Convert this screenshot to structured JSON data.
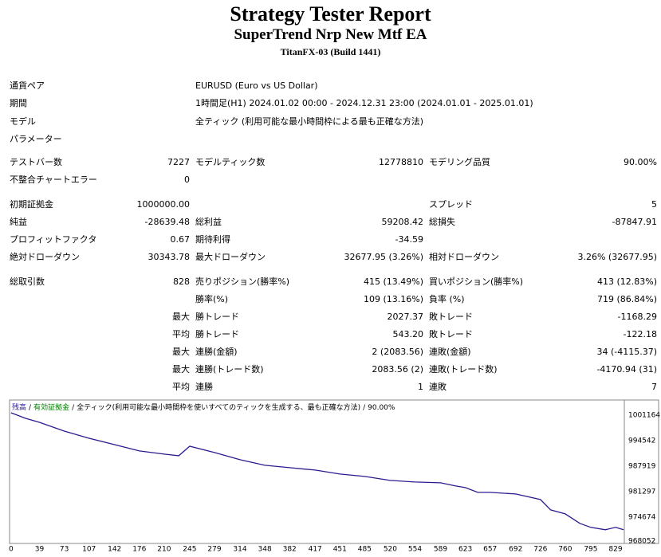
{
  "header": {
    "title": "Strategy Tester Report",
    "subtitle": "SuperTrend Nrp New Mtf EA",
    "build": "TitanFX-03 (Build 1441)"
  },
  "info": [
    {
      "label": "通貨ペア",
      "value": "EURUSD (Euro vs US Dollar)"
    },
    {
      "label": "期間",
      "value": "1時間足(H1) 2024.01.02 00:00 - 2024.12.31 23:00 (2024.01.01 - 2025.01.01)"
    },
    {
      "label": "モデル",
      "value": "全ティック (利用可能な最小時間枠による最も正確な方法)"
    },
    {
      "label": "パラメーター"
    }
  ],
  "groups": [
    [
      [
        "テストバー数",
        "7227",
        "モデルティック数",
        "12778810",
        "モデリング品質",
        "90.00%"
      ],
      [
        "不整合チャートエラー",
        "0",
        null,
        null,
        null,
        null
      ]
    ],
    [
      [
        "初期証拠金",
        "1000000.00",
        null,
        null,
        "スプレッド",
        "5"
      ],
      [
        "純益",
        "-28639.48",
        "総利益",
        "59208.42",
        "総損失",
        "-87847.91"
      ],
      [
        "プロフィットファクタ",
        "0.67",
        "期待利得",
        "-34.59",
        null,
        null
      ],
      [
        "絶対ドローダウン",
        "30343.78",
        "最大ドローダウン",
        "32677.95 (3.26%)",
        "相対ドローダウン",
        "3.26% (32677.95)"
      ]
    ],
    [
      [
        "総取引数",
        "828",
        "売りポジション(勝率%)",
        "415 (13.49%)",
        "買いポジション(勝率%)",
        "413 (12.83%)"
      ],
      [
        null,
        null,
        "勝率(%)",
        "109 (13.16%)",
        "負率 (%)",
        "719 (86.84%)"
      ],
      [
        null,
        "最大",
        "勝トレード",
        "2027.37",
        "敗トレード",
        "-1168.29"
      ],
      [
        null,
        "平均",
        "勝トレード",
        "543.20",
        "敗トレード",
        "-122.18"
      ],
      [
        null,
        "最大",
        "連勝(金額)",
        "2 (2083.56)",
        "連敗(金額)",
        "34 (-4115.37)"
      ],
      [
        null,
        "最大",
        "連勝(トレード数)",
        "2083.56 (2)",
        "連敗(トレード数)",
        "-4170.94 (31)"
      ],
      [
        null,
        "平均",
        "連勝",
        "1",
        "連敗",
        "7"
      ]
    ]
  ],
  "chart_data": {
    "type": "line",
    "separator": "/",
    "equity_label": "有効証拠金",
    "equity_color": "#008000",
    "model_note": "全ティック(利用可能な最小時間枠を使いすべてのティックを生成する、最も正確な方法)",
    "quality": "90.00%",
    "x": [
      0,
      20,
      39,
      73,
      107,
      142,
      176,
      210,
      230,
      245,
      279,
      314,
      348,
      382,
      417,
      451,
      485,
      520,
      554,
      589,
      610,
      623,
      640,
      657,
      692,
      726,
      740,
      760,
      780,
      795,
      815,
      829,
      840
    ],
    "series": [
      {
        "name": "残高",
        "color": "#2b1b8f",
        "values": [
          1001785,
          1000336,
          999300,
          997024,
          995161,
          993505,
          991849,
          991021,
          990607,
          993091,
          991435,
          989572,
          988123,
          987502,
          986881,
          985846,
          985225,
          984190,
          983776,
          983569,
          982741,
          982327,
          981085,
          981085,
          980671,
          979222,
          976531,
          975496,
          973012,
          971977,
          971356,
          971977,
          971361
        ]
      }
    ],
    "xlim": [
      -2,
      841
    ],
    "ylim": [
      967800,
      1005100
    ],
    "xticks": [
      0,
      39,
      73,
      107,
      142,
      176,
      210,
      245,
      279,
      314,
      348,
      382,
      417,
      451,
      485,
      520,
      554,
      589,
      623,
      657,
      692,
      726,
      760,
      795,
      829
    ],
    "yticks": [
      1001164,
      994542,
      987919,
      981297,
      974674,
      968052
    ]
  }
}
